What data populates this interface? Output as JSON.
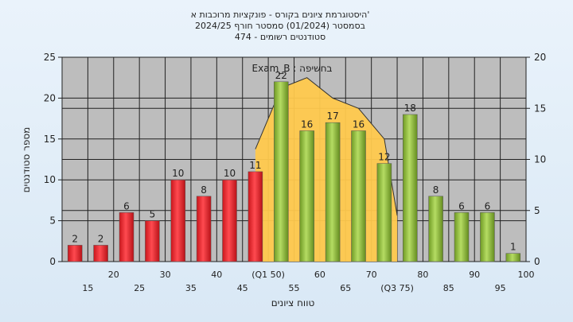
{
  "chart_data": {
    "type": "bar",
    "title_lines": [
      "היסטוגרמת ציונים בקורס - פונקציות מרוכבות א'",
      "בסמסטר  (01/2024)  סמסטר חורף 2024/25",
      "סטודנטים רשומים - 474"
    ],
    "xlabel": "טווח ציונים",
    "ylabel": "מספר סטודנטים",
    "annotation": "Exam_B : בחשיפה",
    "ylim": [
      0,
      25
    ],
    "y_ticks": [
      0,
      5,
      10,
      15,
      20,
      25
    ],
    "y2lim": [
      0,
      20
    ],
    "y2_ticks": [
      0,
      5,
      10,
      15,
      20
    ],
    "grid": true,
    "x_ticks_odd": [
      "15",
      "25",
      "35",
      "45",
      "55",
      "65",
      "(Q3 75)",
      "85",
      "95"
    ],
    "x_ticks_even": [
      "20",
      "30",
      "40",
      "(Q1 50)",
      "60",
      "70",
      "80",
      "90",
      "100"
    ],
    "categories": [
      "15",
      "20",
      "25",
      "30",
      "35",
      "40",
      "45",
      "50",
      "55",
      "60",
      "65",
      "70",
      "75",
      "80",
      "85",
      "90",
      "95",
      "100"
    ],
    "values": [
      2,
      2,
      6,
      5,
      10,
      8,
      10,
      11,
      22,
      16,
      17,
      16,
      12,
      18,
      8,
      6,
      6,
      1
    ],
    "bar_colors": [
      "red",
      "red",
      "red",
      "red",
      "red",
      "red",
      "red",
      "red",
      "green",
      "green",
      "green",
      "green",
      "green",
      "green",
      "green",
      "green",
      "green",
      "green"
    ],
    "distribution_curve": {
      "y_axis": "right",
      "points": [
        [
          50,
          11
        ],
        [
          55,
          17
        ],
        [
          60,
          18
        ],
        [
          65,
          16
        ],
        [
          70,
          15
        ],
        [
          75,
          12
        ],
        [
          77.5,
          4.5
        ]
      ]
    },
    "colors": {
      "red": "#e0242b",
      "green": "#8ab83a",
      "curve": "#ffc94d",
      "plot_bg": "#bdbdbd"
    }
  }
}
